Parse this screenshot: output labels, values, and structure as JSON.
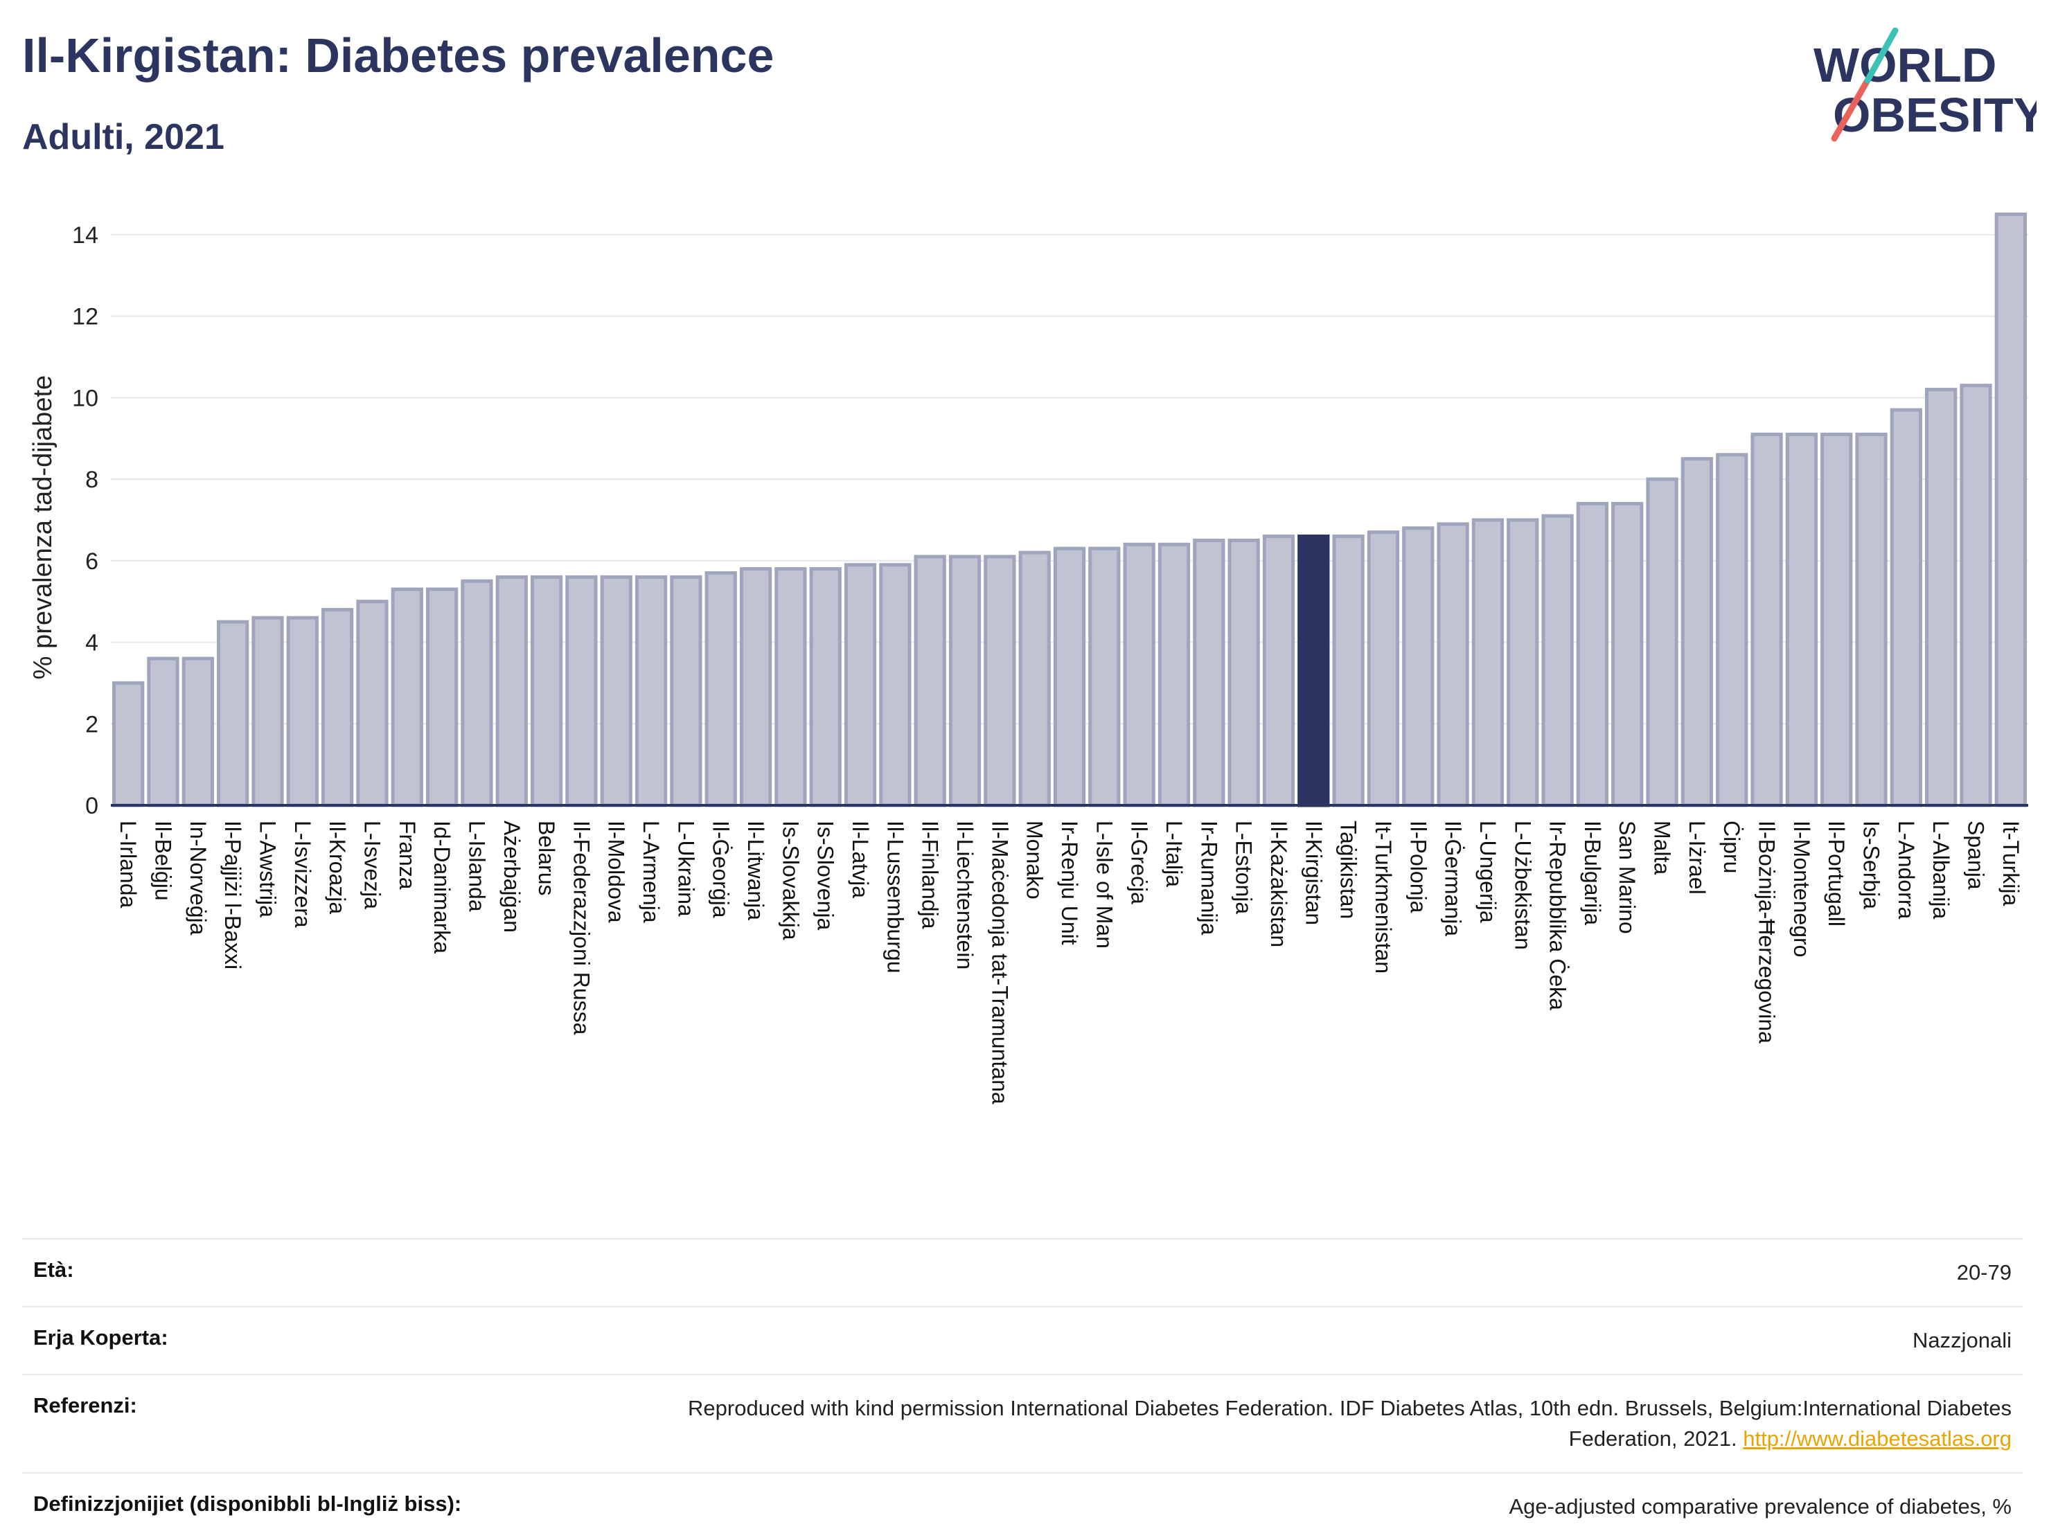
{
  "header": {
    "title": "Il-Kirgistan: Diabetes prevalence",
    "subtitle": "Adulti, 2021"
  },
  "logo": {
    "line1": "WORLD",
    "line2": "OBESITY",
    "accent_teal": "#3cc1b6",
    "accent_red": "#e8645a"
  },
  "colors": {
    "bar": "#bfc3d2",
    "bar_border": "#9fa5bd",
    "highlight": "#2b3560"
  },
  "chart_data": {
    "type": "bar",
    "title": "Il-Kirgistan: Diabetes prevalence",
    "subtitle": "Adulti, 2021",
    "xlabel": "",
    "ylabel": "% prevalenza tad-dijabete",
    "ylim": [
      0,
      15
    ],
    "yticks": [
      0,
      2,
      4,
      6,
      8,
      10,
      12,
      14
    ],
    "grid": true,
    "highlight": "Il-Kirgistan",
    "categories": [
      "L-Irlanda",
      "Il-Belġju",
      "In-Norveġja",
      "Il-Pajjiżi l-Baxxi",
      "L-Awstrija",
      "L-Isvizzera",
      "Il-Kroazja",
      "L-Isvezja",
      "Franza",
      "Id-Danimarka",
      "L-Islanda",
      "Ażerbajġan",
      "Belarus",
      "Il-Federazzjoni Russa",
      "Il-Moldova",
      "L-Armenja",
      "L-Ukraina",
      "Il-Ġeorġja",
      "Il-Litwanja",
      "Is-Slovakkja",
      "Is-Slovenja",
      "Il-Latvja",
      "Il-Lussemburgu",
      "Il-Finlandja",
      "Il-Liechtenstein",
      "Il-Maċedonja tat-Tramuntana",
      "Monako",
      "Ir-Renju Unit",
      "L-Isle of Man",
      "Il-Greċja",
      "L-Italja",
      "Ir-Rumanija",
      "L-Estonja",
      "Il-Każakistan",
      "Il-Kirgistan",
      "Taġikistan",
      "It-Turkmenistan",
      "Il-Polonja",
      "Il-Ġermanja",
      "L-Ungerija",
      "L-Użbekistan",
      "Ir-Repubblika Ċeka",
      "Il-Bulgarija",
      "San Marino",
      "Malta",
      "L-Iżrael",
      "Ċipru",
      "Il-Bożnija-Ħerzegovina",
      "Il-Montenegro",
      "Il-Portugall",
      "Is-Serbja",
      "L-Andorra",
      "L-Albanija",
      "Spanja",
      "It-Turkija"
    ],
    "values": [
      3.0,
      3.6,
      3.6,
      4.5,
      4.6,
      4.6,
      4.8,
      5.0,
      5.3,
      5.3,
      5.5,
      5.6,
      5.6,
      5.6,
      5.6,
      5.6,
      5.6,
      5.7,
      5.8,
      5.8,
      5.8,
      5.9,
      5.9,
      6.1,
      6.1,
      6.1,
      6.2,
      6.3,
      6.3,
      6.4,
      6.4,
      6.5,
      6.5,
      6.6,
      6.6,
      6.6,
      6.7,
      6.8,
      6.9,
      7.0,
      7.0,
      7.1,
      7.4,
      7.4,
      8.0,
      8.5,
      8.6,
      9.1,
      9.1,
      9.1,
      9.1,
      9.7,
      10.2,
      10.3,
      14.5
    ]
  },
  "info": [
    {
      "key": "Età:",
      "value": "20-79"
    },
    {
      "key": "Erja Koperta:",
      "value": "Nazzjonali"
    },
    {
      "key": "Referenzi:",
      "value": "Reproduced with kind permission International Diabetes Federation.  IDF Diabetes Atlas, 10th edn. Brussels, Belgium:International Diabetes Federation, 2021.",
      "link": "http://www.diabetesatlas.org"
    },
    {
      "key": "Definizzjonijiet (disponibbli bl-Ingliż biss):",
      "value": "Age-adjusted comparative prevalence of diabetes, %"
    }
  ]
}
